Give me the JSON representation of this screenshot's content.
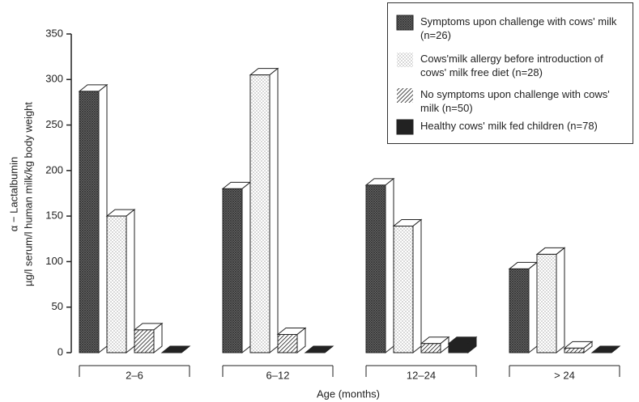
{
  "chart_data": {
    "type": "bar3d",
    "y_label": [
      "α − Lactalbumin",
      "µg/l serum/l human milk/kg body weight"
    ],
    "x_label": "Age (months)",
    "categories": [
      "2–6",
      "6–12",
      "12–24",
      "> 24"
    ],
    "series": [
      {
        "name": "Symptoms upon challenge with cows' milk (n=26)",
        "color": "#555555",
        "pattern": "dense",
        "values": [
          287,
          180,
          184,
          92
        ]
      },
      {
        "name": "Cows'milk allergy before introduction of cows' milk free diet (n=28)",
        "color": "#888888",
        "pattern": "dots",
        "values": [
          150,
          305,
          139,
          108
        ]
      },
      {
        "name": "No symptoms upon challenge with cows' milk (n=50)",
        "color": "#333333",
        "pattern": "hatch",
        "values": [
          25,
          20,
          10,
          5
        ]
      },
      {
        "name": "Healthy cows' milk fed children (n=78)",
        "color": "#222222",
        "pattern": "solid",
        "values": [
          0,
          0,
          10,
          0
        ]
      }
    ],
    "ylim": [
      0,
      350
    ],
    "yticks": [
      0,
      50,
      100,
      150,
      200,
      250,
      300,
      350
    ]
  }
}
